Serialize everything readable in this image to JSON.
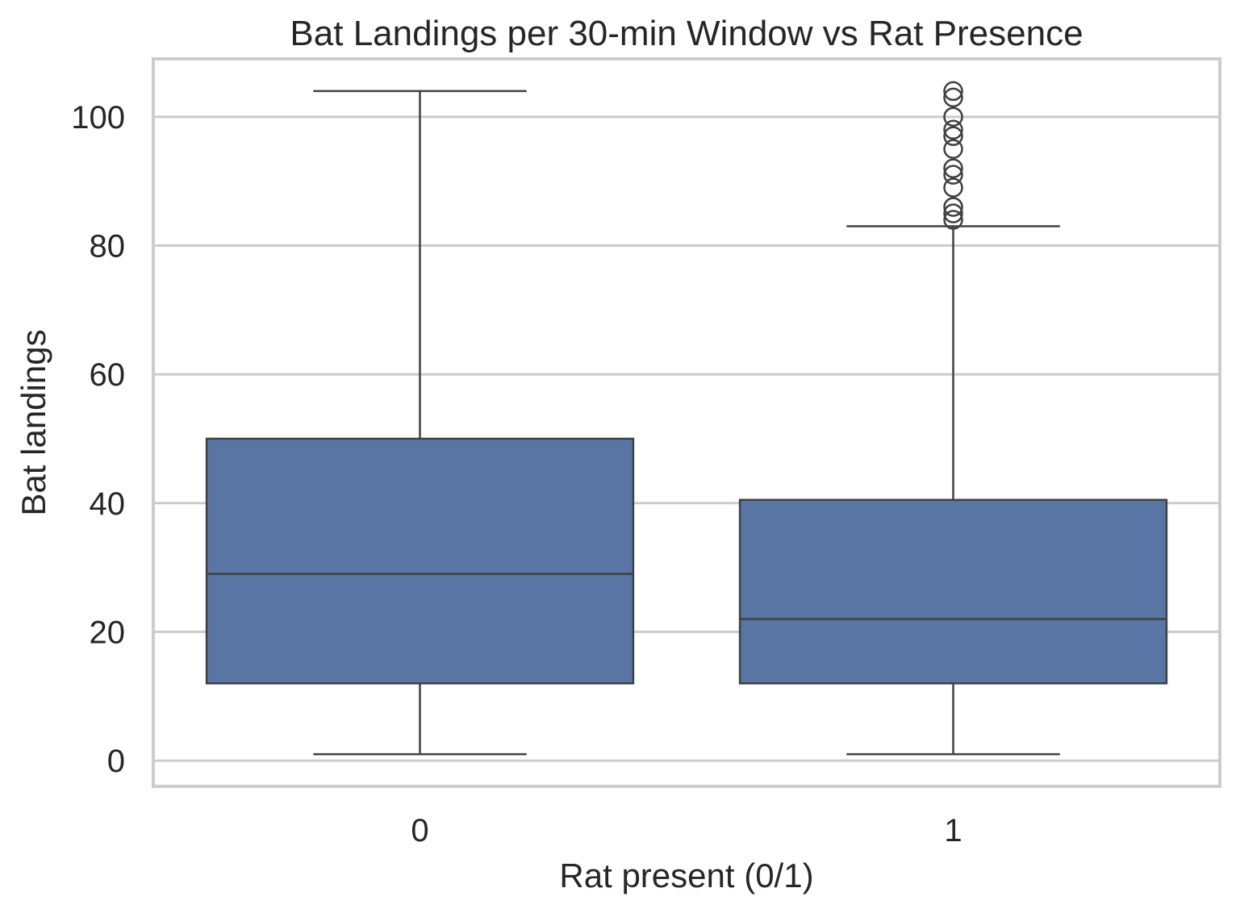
{
  "chart_data": {
    "type": "box",
    "title": "Bat Landings per 30-min Window vs Rat Presence",
    "xlabel": "Rat present (0/1)",
    "ylabel": "Bat landings",
    "ylim": [
      -4,
      109
    ],
    "yticks": [
      0,
      20,
      40,
      60,
      80,
      100
    ],
    "grid": true,
    "categories": [
      "0",
      "1"
    ],
    "boxes": [
      {
        "category": "0",
        "whisker_low": 1,
        "q1": 12,
        "median": 29,
        "q3": 50,
        "whisker_high": 104,
        "outliers": []
      },
      {
        "category": "1",
        "whisker_low": 1,
        "q1": 12,
        "median": 22,
        "q3": 40.5,
        "whisker_high": 83,
        "outliers": [
          84,
          85,
          86,
          89,
          91,
          92,
          95,
          97,
          98,
          100,
          103,
          104
        ]
      }
    ],
    "colors": {
      "box_fill": "#5875a4",
      "line": "#404040",
      "grid": "#cccccc",
      "frame": "#cccccc"
    }
  }
}
